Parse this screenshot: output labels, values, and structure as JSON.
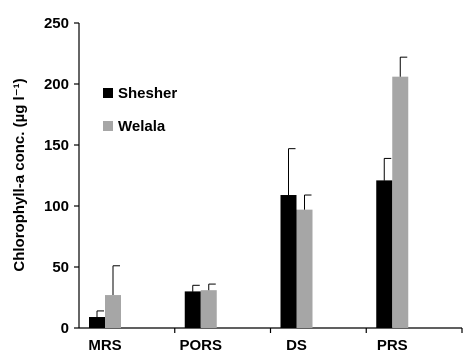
{
  "chart_data": {
    "type": "bar",
    "title": "",
    "xlabel": "",
    "ylabel": "Chlorophyll-a conc. (µg l⁻¹)",
    "ylim": [
      0,
      250
    ],
    "yticks": [
      0,
      50,
      100,
      150,
      200,
      250
    ],
    "categories": [
      "MRS",
      "PORS",
      "DS",
      "PRS"
    ],
    "series": [
      {
        "name": "Shesher",
        "color": "#000000",
        "values": [
          9,
          30,
          109,
          121
        ],
        "errors": [
          5,
          5,
          38,
          18
        ]
      },
      {
        "name": "Welala",
        "color": "#a6a6a6",
        "values": [
          27,
          31,
          97,
          206
        ],
        "errors": [
          24,
          5,
          12,
          16
        ]
      }
    ],
    "legend_position": "top-left",
    "grid": false
  }
}
